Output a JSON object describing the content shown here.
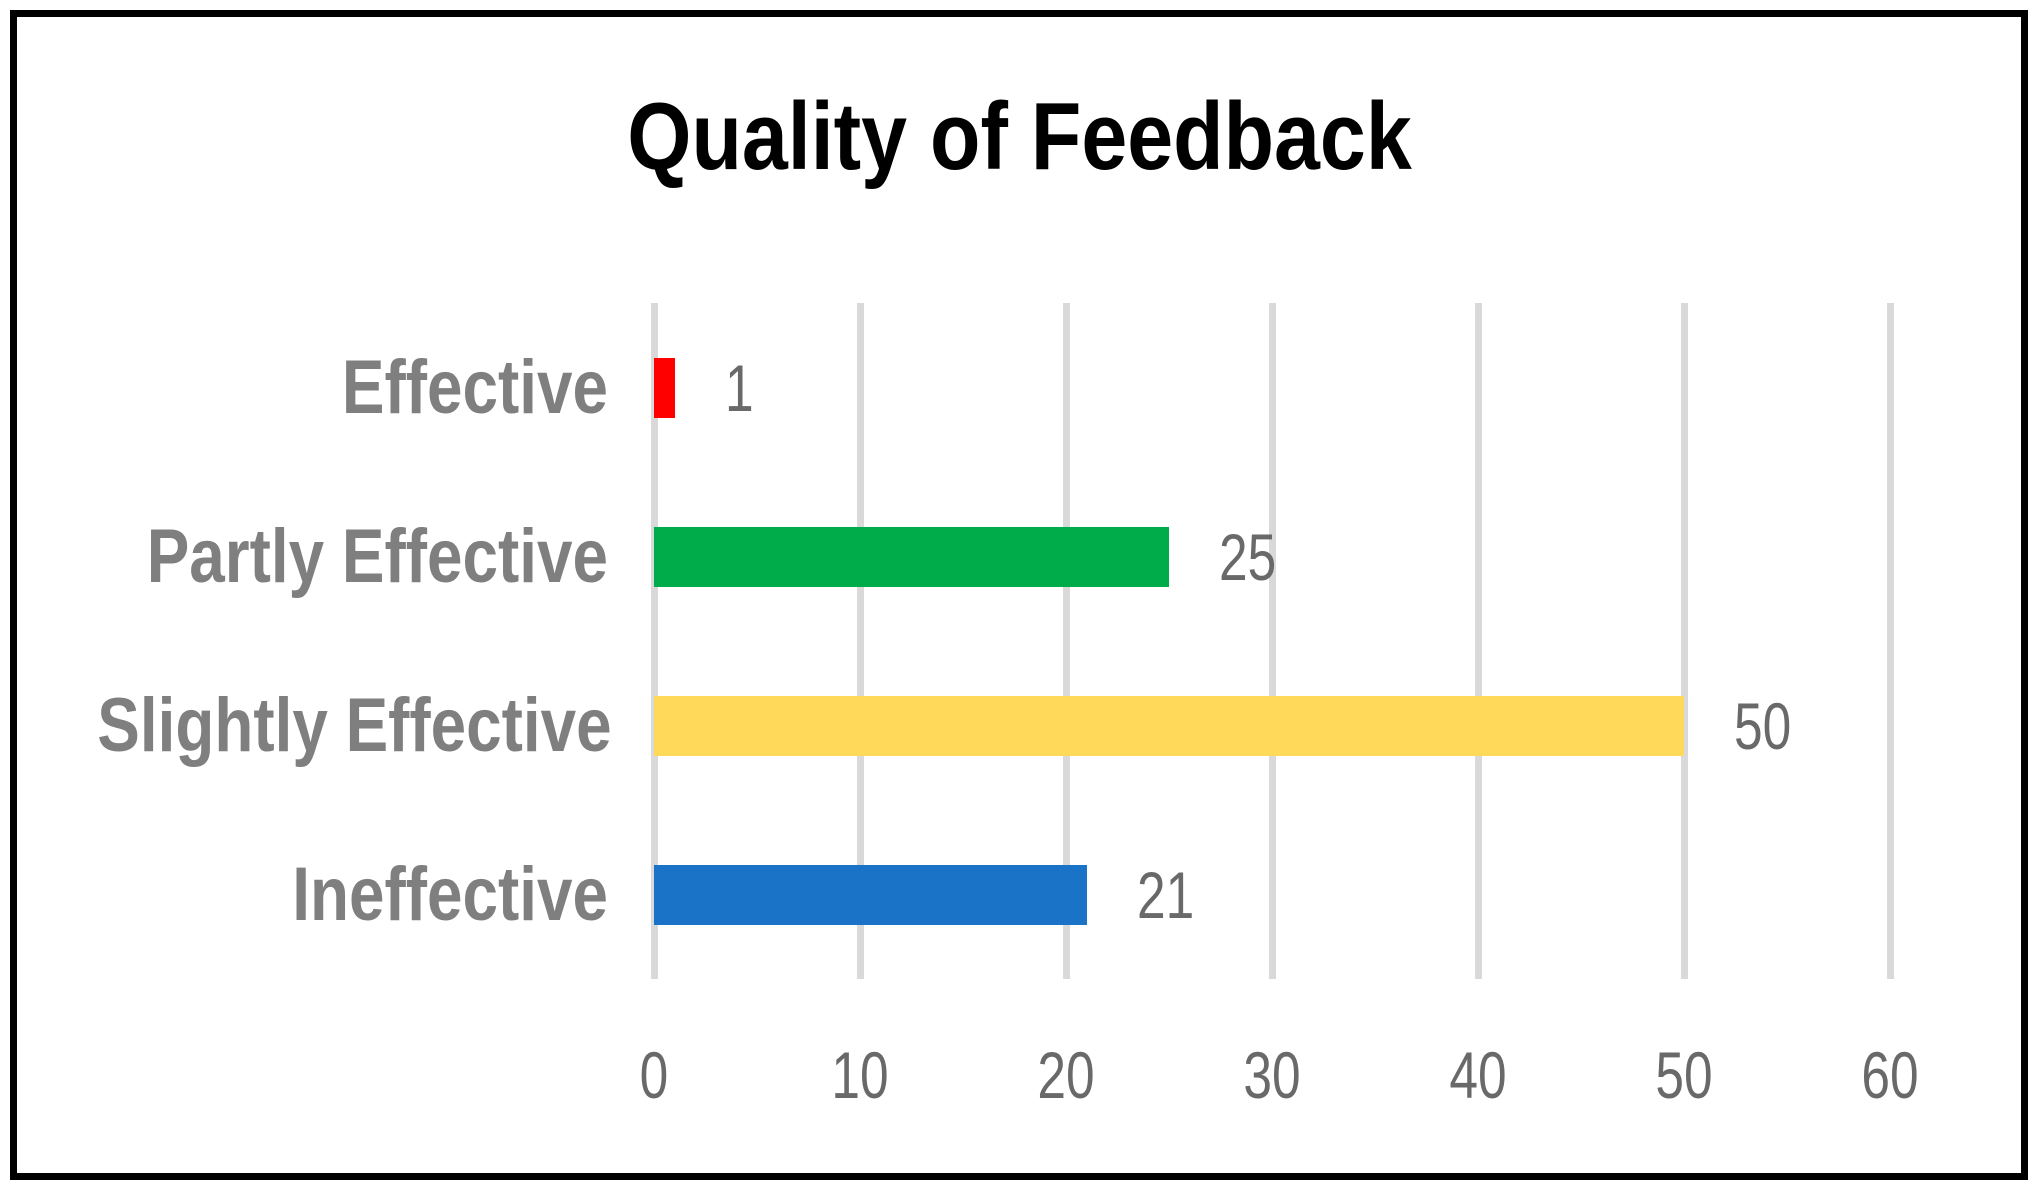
{
  "chart_data": {
    "type": "bar",
    "orientation": "horizontal",
    "title": "Quality of Feedback",
    "categories": [
      "Effective",
      "Partly Effective",
      "Slightly Effective",
      "Ineffective"
    ],
    "values": [
      1,
      25,
      50,
      21
    ],
    "data_labels": [
      "1",
      "25",
      "50",
      "21"
    ],
    "bar_colors": [
      "#FF0000",
      "#00AC4A",
      "#FFD95A",
      "#1B73C7"
    ],
    "x_ticks": [
      0,
      10,
      20,
      30,
      40,
      50,
      60
    ],
    "xlim": [
      0,
      60
    ],
    "xlabel": "",
    "ylabel": "",
    "grid": "vertical-only",
    "legend": "none",
    "colors": {
      "gridline": "#D9D9D9",
      "category_label": "#7F7F7F",
      "value_label": "#696969",
      "axis_label": "#696969",
      "title": "#000000",
      "frame_border": "#000000",
      "background": "#FFFFFF"
    }
  }
}
